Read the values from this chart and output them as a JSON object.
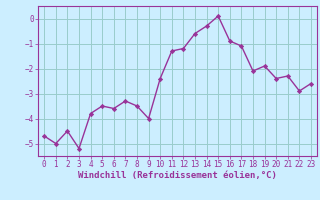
{
  "x": [
    0,
    1,
    2,
    3,
    4,
    5,
    6,
    7,
    8,
    9,
    10,
    11,
    12,
    13,
    14,
    15,
    16,
    17,
    18,
    19,
    20,
    21,
    22,
    23
  ],
  "y": [
    -4.7,
    -5.0,
    -4.5,
    -5.2,
    -3.8,
    -3.5,
    -3.6,
    -3.3,
    -3.5,
    -4.0,
    -2.4,
    -1.3,
    -1.2,
    -0.6,
    -0.3,
    0.1,
    -0.9,
    -1.1,
    -2.1,
    -1.9,
    -2.4,
    -2.3,
    -2.9,
    -2.6
  ],
  "line_color": "#993399",
  "marker": "D",
  "marker_size": 2.2,
  "bg_color": "#cceeff",
  "grid_color": "#99cccc",
  "xlabel": "Windchill (Refroidissement éolien,°C)",
  "ylabel": "",
  "ylim": [
    -5.5,
    0.5
  ],
  "xlim": [
    -0.5,
    23.5
  ],
  "yticks": [
    0,
    -1,
    -2,
    -3,
    -4,
    -5
  ],
  "xticks": [
    0,
    1,
    2,
    3,
    4,
    5,
    6,
    7,
    8,
    9,
    10,
    11,
    12,
    13,
    14,
    15,
    16,
    17,
    18,
    19,
    20,
    21,
    22,
    23
  ],
  "tick_fontsize": 5.5,
  "xlabel_fontsize": 6.5,
  "line_width": 1.0
}
